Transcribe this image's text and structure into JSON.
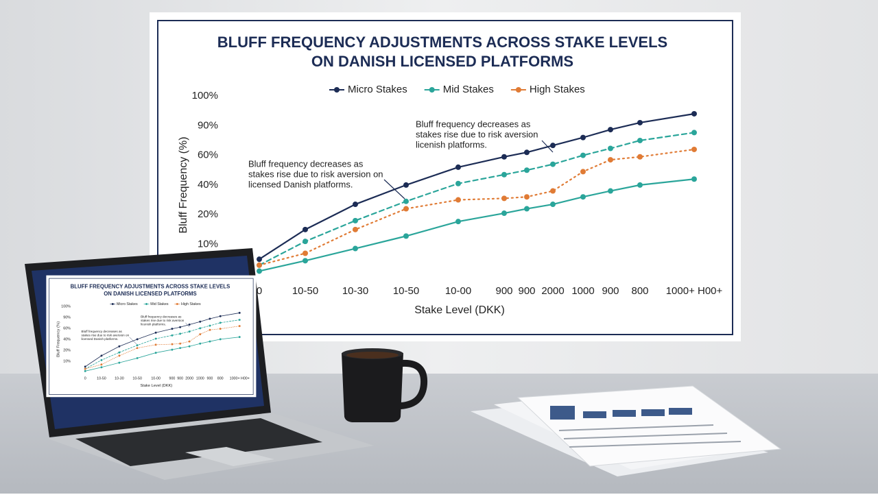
{
  "chart_data": {
    "type": "line",
    "title": [
      "BLUFF FREQUENCY ADJUSTMENTS ACROSS STAKE LEVELS",
      "ON DANISH LICENSED PLATFORMS"
    ],
    "x_label": "Stake Level (DKK)",
    "y_label": "Bluff Frequency (%)",
    "categories": [
      "0",
      "10-50",
      "10-30",
      "10-50",
      "10-00",
      "900",
      "900",
      "2000",
      "1000",
      "900",
      "800",
      "1000+ H00+"
    ],
    "ylim": [
      0,
      100
    ],
    "yticks": [
      {
        "value": 100,
        "label": "100%"
      },
      {
        "value": 90,
        "label": "90%"
      },
      {
        "value": 60,
        "label": "60%"
      },
      {
        "value": 40,
        "label": "40%"
      },
      {
        "value": 20,
        "label": "20%"
      },
      {
        "value": 10,
        "label": "10%"
      }
    ],
    "series": [
      {
        "name": "Micro Stakes",
        "color": "#1c2c55",
        "style": "solid",
        "values": [
          5,
          15,
          27,
          40,
          52,
          59,
          63,
          70,
          78,
          86,
          91,
          94
        ]
      },
      {
        "name": "Mid Stakes",
        "color": "#2aa59a",
        "style": "dashed",
        "values": [
          3,
          11,
          18,
          29,
          41,
          47,
          50,
          54,
          60,
          67,
          75,
          83
        ]
      },
      {
        "name": "High Stakes",
        "color": "#e07b35",
        "style": "dotted",
        "values": [
          3,
          7,
          15,
          24,
          30,
          31,
          32,
          36,
          49,
          57,
          59,
          66
        ]
      },
      {
        "color": "#2aa59a",
        "style": "solid",
        "values": [
          1,
          4.5,
          8.6,
          12.8,
          17.7,
          21,
          24,
          27,
          32,
          36,
          40,
          44
        ]
      }
    ],
    "annotations": [
      [
        "Bluff frequency decreases as",
        "stakes rise due to risk aversion on",
        "licensed Danish platforms."
      ],
      [
        "Bluff frequency decreases as",
        "stakes rise due to risk aversion",
        "licenish platforms."
      ]
    ]
  }
}
